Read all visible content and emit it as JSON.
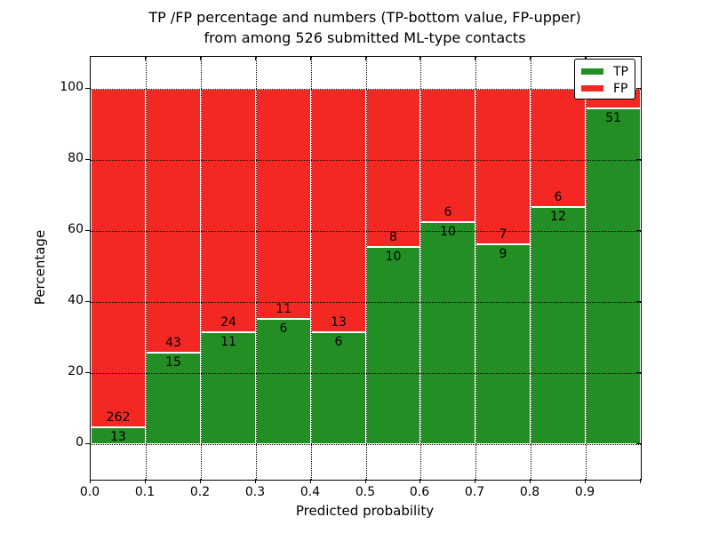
{
  "figure": {
    "title_line1": "TP /FP percentage and numbers (TP-bottom value, FP-upper)",
    "title_line2": "from among 526 submitted ML-type contacts",
    "xlabel": "Predicted probability",
    "ylabel": "Percentage"
  },
  "legend": {
    "entries": [
      {
        "label": "TP",
        "color": "#238e23"
      },
      {
        "label": "FP",
        "color": "#f42823"
      }
    ]
  },
  "chart_data": {
    "type": "bar",
    "variant": "stacked-percentage-histogram",
    "title": "TP /FP percentage and numbers (TP-bottom value, FP-upper) from among 526 submitted ML-type contacts",
    "xlabel": "Predicted probability",
    "ylabel": "Percentage",
    "total_submitted": 526,
    "bins": [
      "0.0-0.1",
      "0.1-0.2",
      "0.2-0.3",
      "0.3-0.4",
      "0.4-0.5",
      "0.5-0.6",
      "0.6-0.7",
      "0.7-0.8",
      "0.8-0.9",
      "0.9-1.0"
    ],
    "series": [
      {
        "name": "TP",
        "color": "#238e23",
        "counts": [
          13,
          15,
          11,
          6,
          6,
          10,
          10,
          9,
          12,
          51
        ]
      },
      {
        "name": "FP",
        "color": "#f42823",
        "counts": [
          262,
          43,
          24,
          11,
          13,
          8,
          6,
          7,
          6,
          3
        ]
      }
    ],
    "tp_percent_of_bin": [
      4.7,
      25.9,
      31.4,
      35.3,
      31.6,
      55.6,
      62.5,
      56.3,
      66.7,
      94.4
    ],
    "tp_count_labels": [
      "13",
      "15",
      "11",
      "6",
      "6",
      "10",
      "10",
      "9",
      "12",
      "51"
    ],
    "fp_count_labels": [
      "262",
      "43",
      "24",
      "11",
      "13",
      "8",
      "6",
      "7",
      "6",
      ""
    ],
    "x_ticks": [
      "0.0",
      "0.1",
      "0.2",
      "0.3",
      "0.4",
      "0.5",
      "0.6",
      "0.7",
      "0.8",
      "0.9"
    ],
    "y_ticks": [
      0,
      20,
      40,
      60,
      80,
      100
    ],
    "xlim": [
      0.0,
      1.0
    ],
    "ylim": [
      -10,
      110
    ],
    "grid": "dotted",
    "legend_position": "upper right"
  }
}
